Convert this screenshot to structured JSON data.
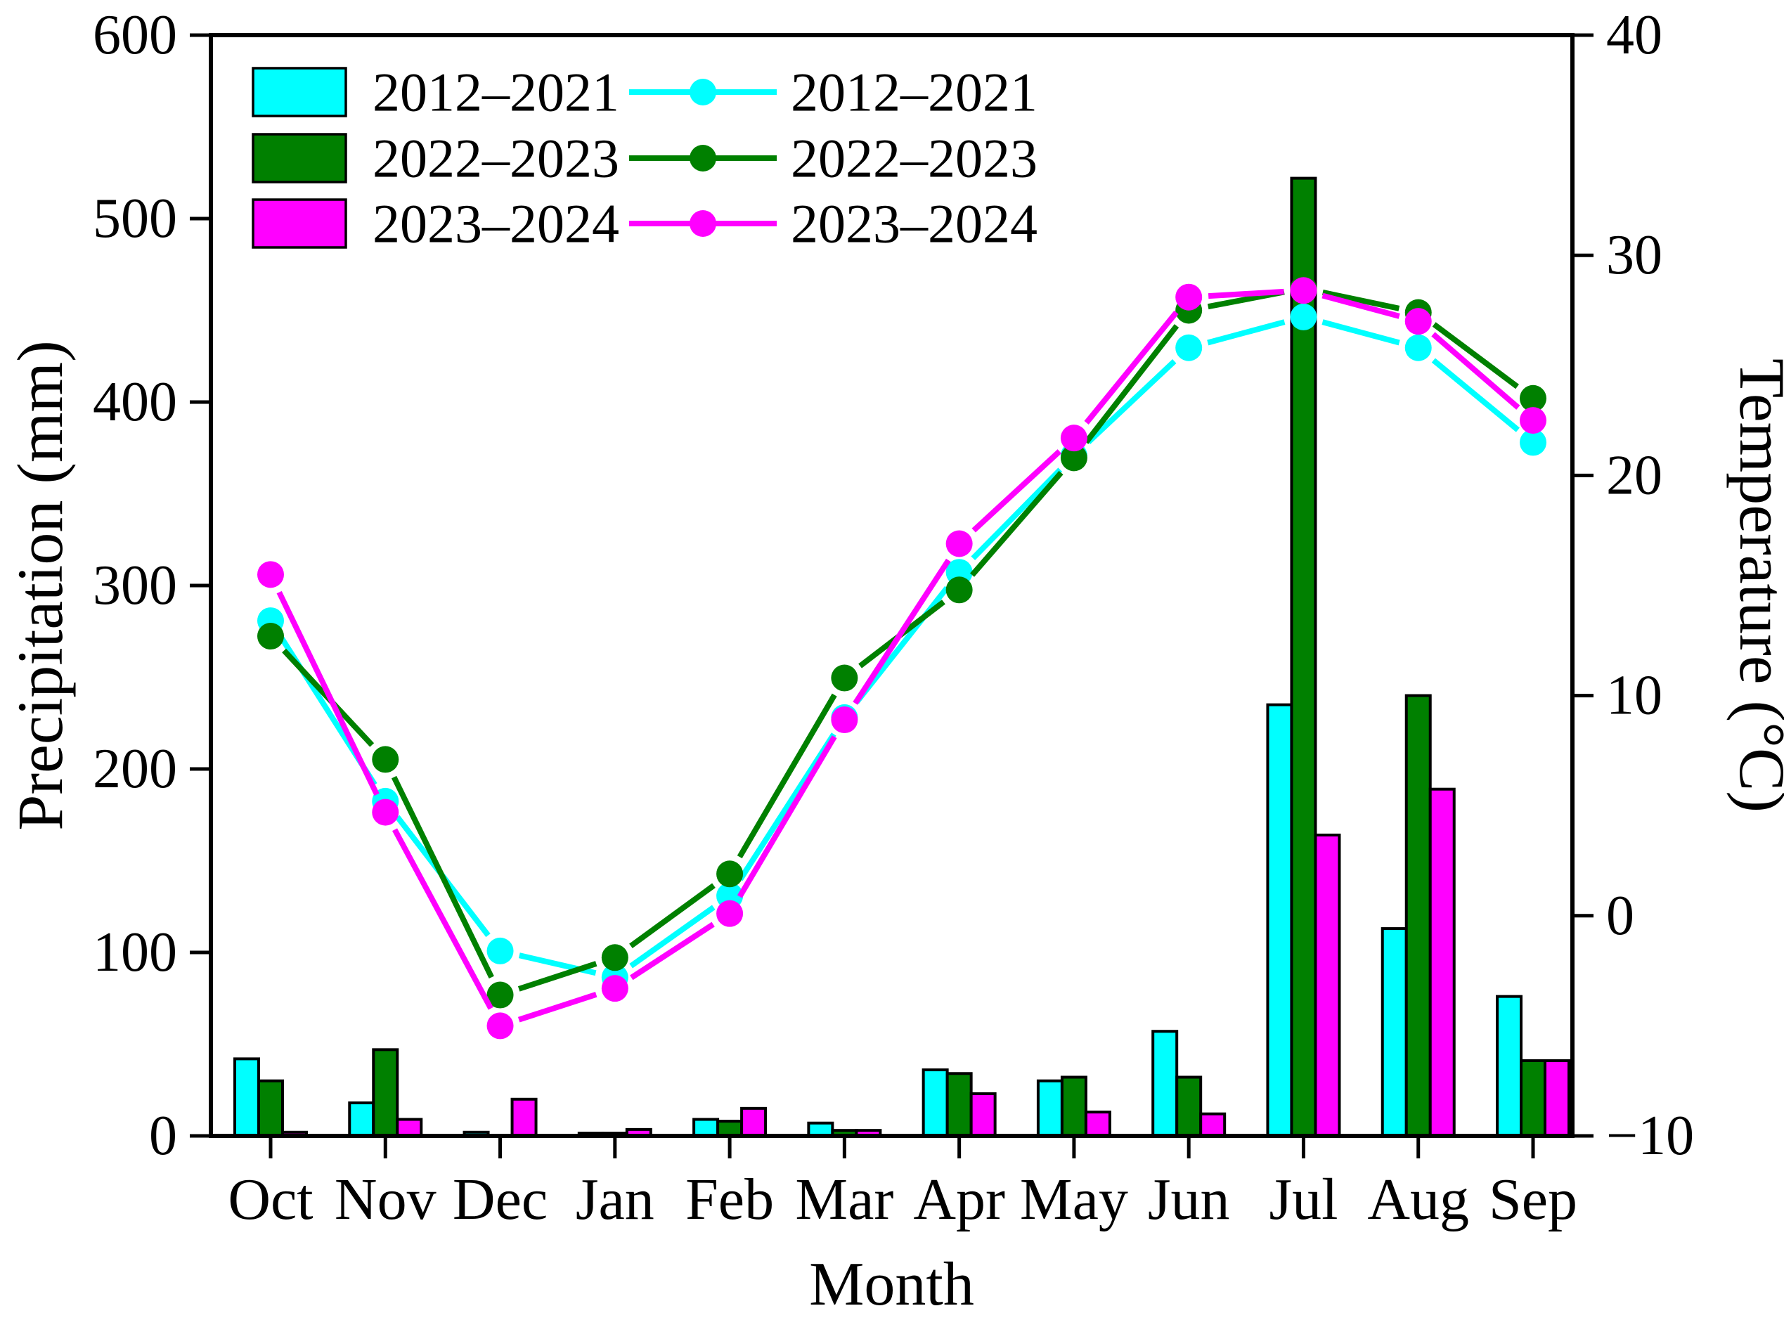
{
  "figure": {
    "background": "#ffffff",
    "axis_color": "#000000"
  },
  "chart_data": {
    "type": "combo",
    "subtype": "grouped-bar-plus-line",
    "categories": [
      "Oct",
      "Nov",
      "Dec",
      "Jan",
      "Feb",
      "Mar",
      "Apr",
      "May",
      "Jun",
      "Jul",
      "Aug",
      "Sep"
    ],
    "xlabel": "Month",
    "left_axis": {
      "label": "Precipitation (mm)",
      "min": 0,
      "max": 600,
      "tick_values": [
        0,
        100,
        200,
        300,
        400,
        500,
        600
      ],
      "tick_labels": [
        "0",
        "100",
        "200",
        "300",
        "400",
        "500",
        "600"
      ]
    },
    "right_axis": {
      "label": "Temperature (°C)",
      "min": -10,
      "max": 40,
      "tick_values": [
        -10,
        0,
        10,
        20,
        30,
        40
      ],
      "tick_labels": [
        "−10",
        "0",
        "10",
        "20",
        "30",
        "40"
      ]
    },
    "grid": false,
    "bar_series": [
      {
        "name": "2012–2021",
        "color": "#00FFFF",
        "values": [
          42,
          18,
          2,
          1.5,
          9,
          7,
          36,
          30,
          57,
          235,
          113,
          76
        ]
      },
      {
        "name": "2022–2023",
        "color": "#008000",
        "values": [
          30,
          47,
          0,
          1.5,
          8,
          3,
          34,
          32,
          32,
          522,
          240,
          41
        ]
      },
      {
        "name": "2023–2024",
        "color": "#FF00FF",
        "values": [
          2,
          9,
          20,
          3.5,
          15,
          3,
          23,
          13,
          12,
          164,
          189,
          41
        ]
      }
    ],
    "line_series": [
      {
        "name": "2012–2021",
        "color": "#00FFFF",
        "values": [
          13.4,
          5.2,
          -1.6,
          -2.8,
          0.9,
          9.0,
          15.6,
          20.9,
          25.8,
          27.2,
          25.8,
          21.5
        ]
      },
      {
        "name": "2022–2023",
        "color": "#008000",
        "values": [
          12.7,
          7.1,
          -3.6,
          -1.9,
          1.9,
          10.8,
          14.8,
          20.8,
          27.5,
          28.5,
          27.4,
          23.5
        ]
      },
      {
        "name": "2023–2024",
        "color": "#FF00FF",
        "values": [
          15.5,
          4.7,
          -5.0,
          -3.3,
          0.1,
          8.9,
          16.9,
          21.7,
          28.1,
          28.4,
          27.0,
          22.5
        ]
      }
    ],
    "legend": {
      "position": "top-left",
      "bar_entries": [
        "2012–2021",
        "2022–2023",
        "2023–2024"
      ],
      "line_entries": [
        "2012–2021",
        "2022–2023",
        "2023–2024"
      ]
    }
  }
}
